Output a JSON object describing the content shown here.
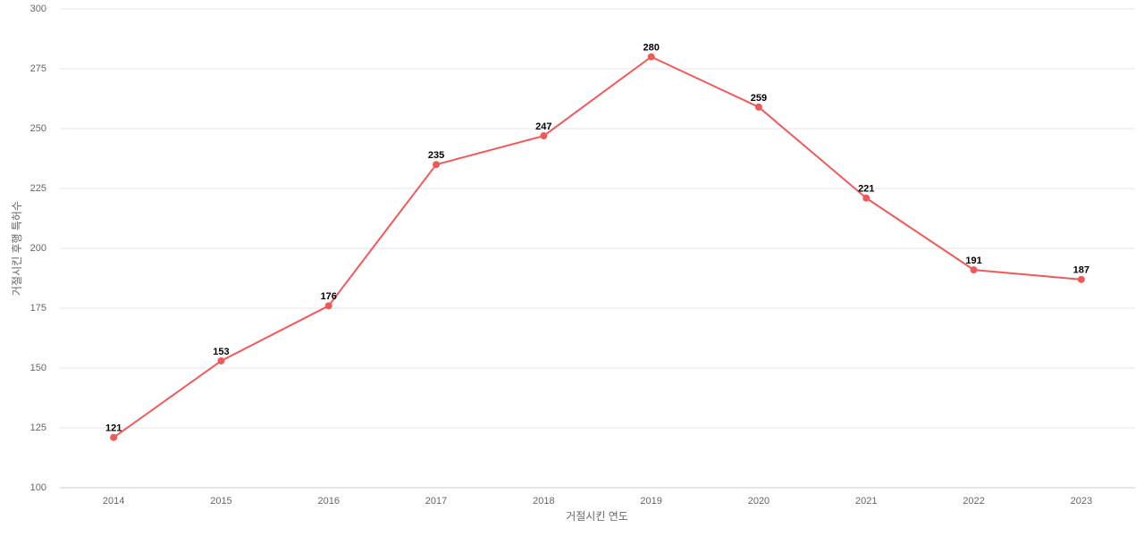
{
  "chart_data": {
    "type": "line",
    "x_label": "거절시킨 연도",
    "y_label": "거절시킨 후행 특허수",
    "categories": [
      "2014",
      "2015",
      "2016",
      "2017",
      "2018",
      "2019",
      "2020",
      "2021",
      "2022",
      "2023"
    ],
    "values": [
      121,
      153,
      176,
      235,
      247,
      280,
      259,
      221,
      191,
      187
    ],
    "color": "#ee5a5a",
    "ylim": [
      100,
      300
    ],
    "yticks": [
      100,
      125,
      150,
      175,
      200,
      225,
      250,
      275,
      300
    ],
    "grid": true
  }
}
